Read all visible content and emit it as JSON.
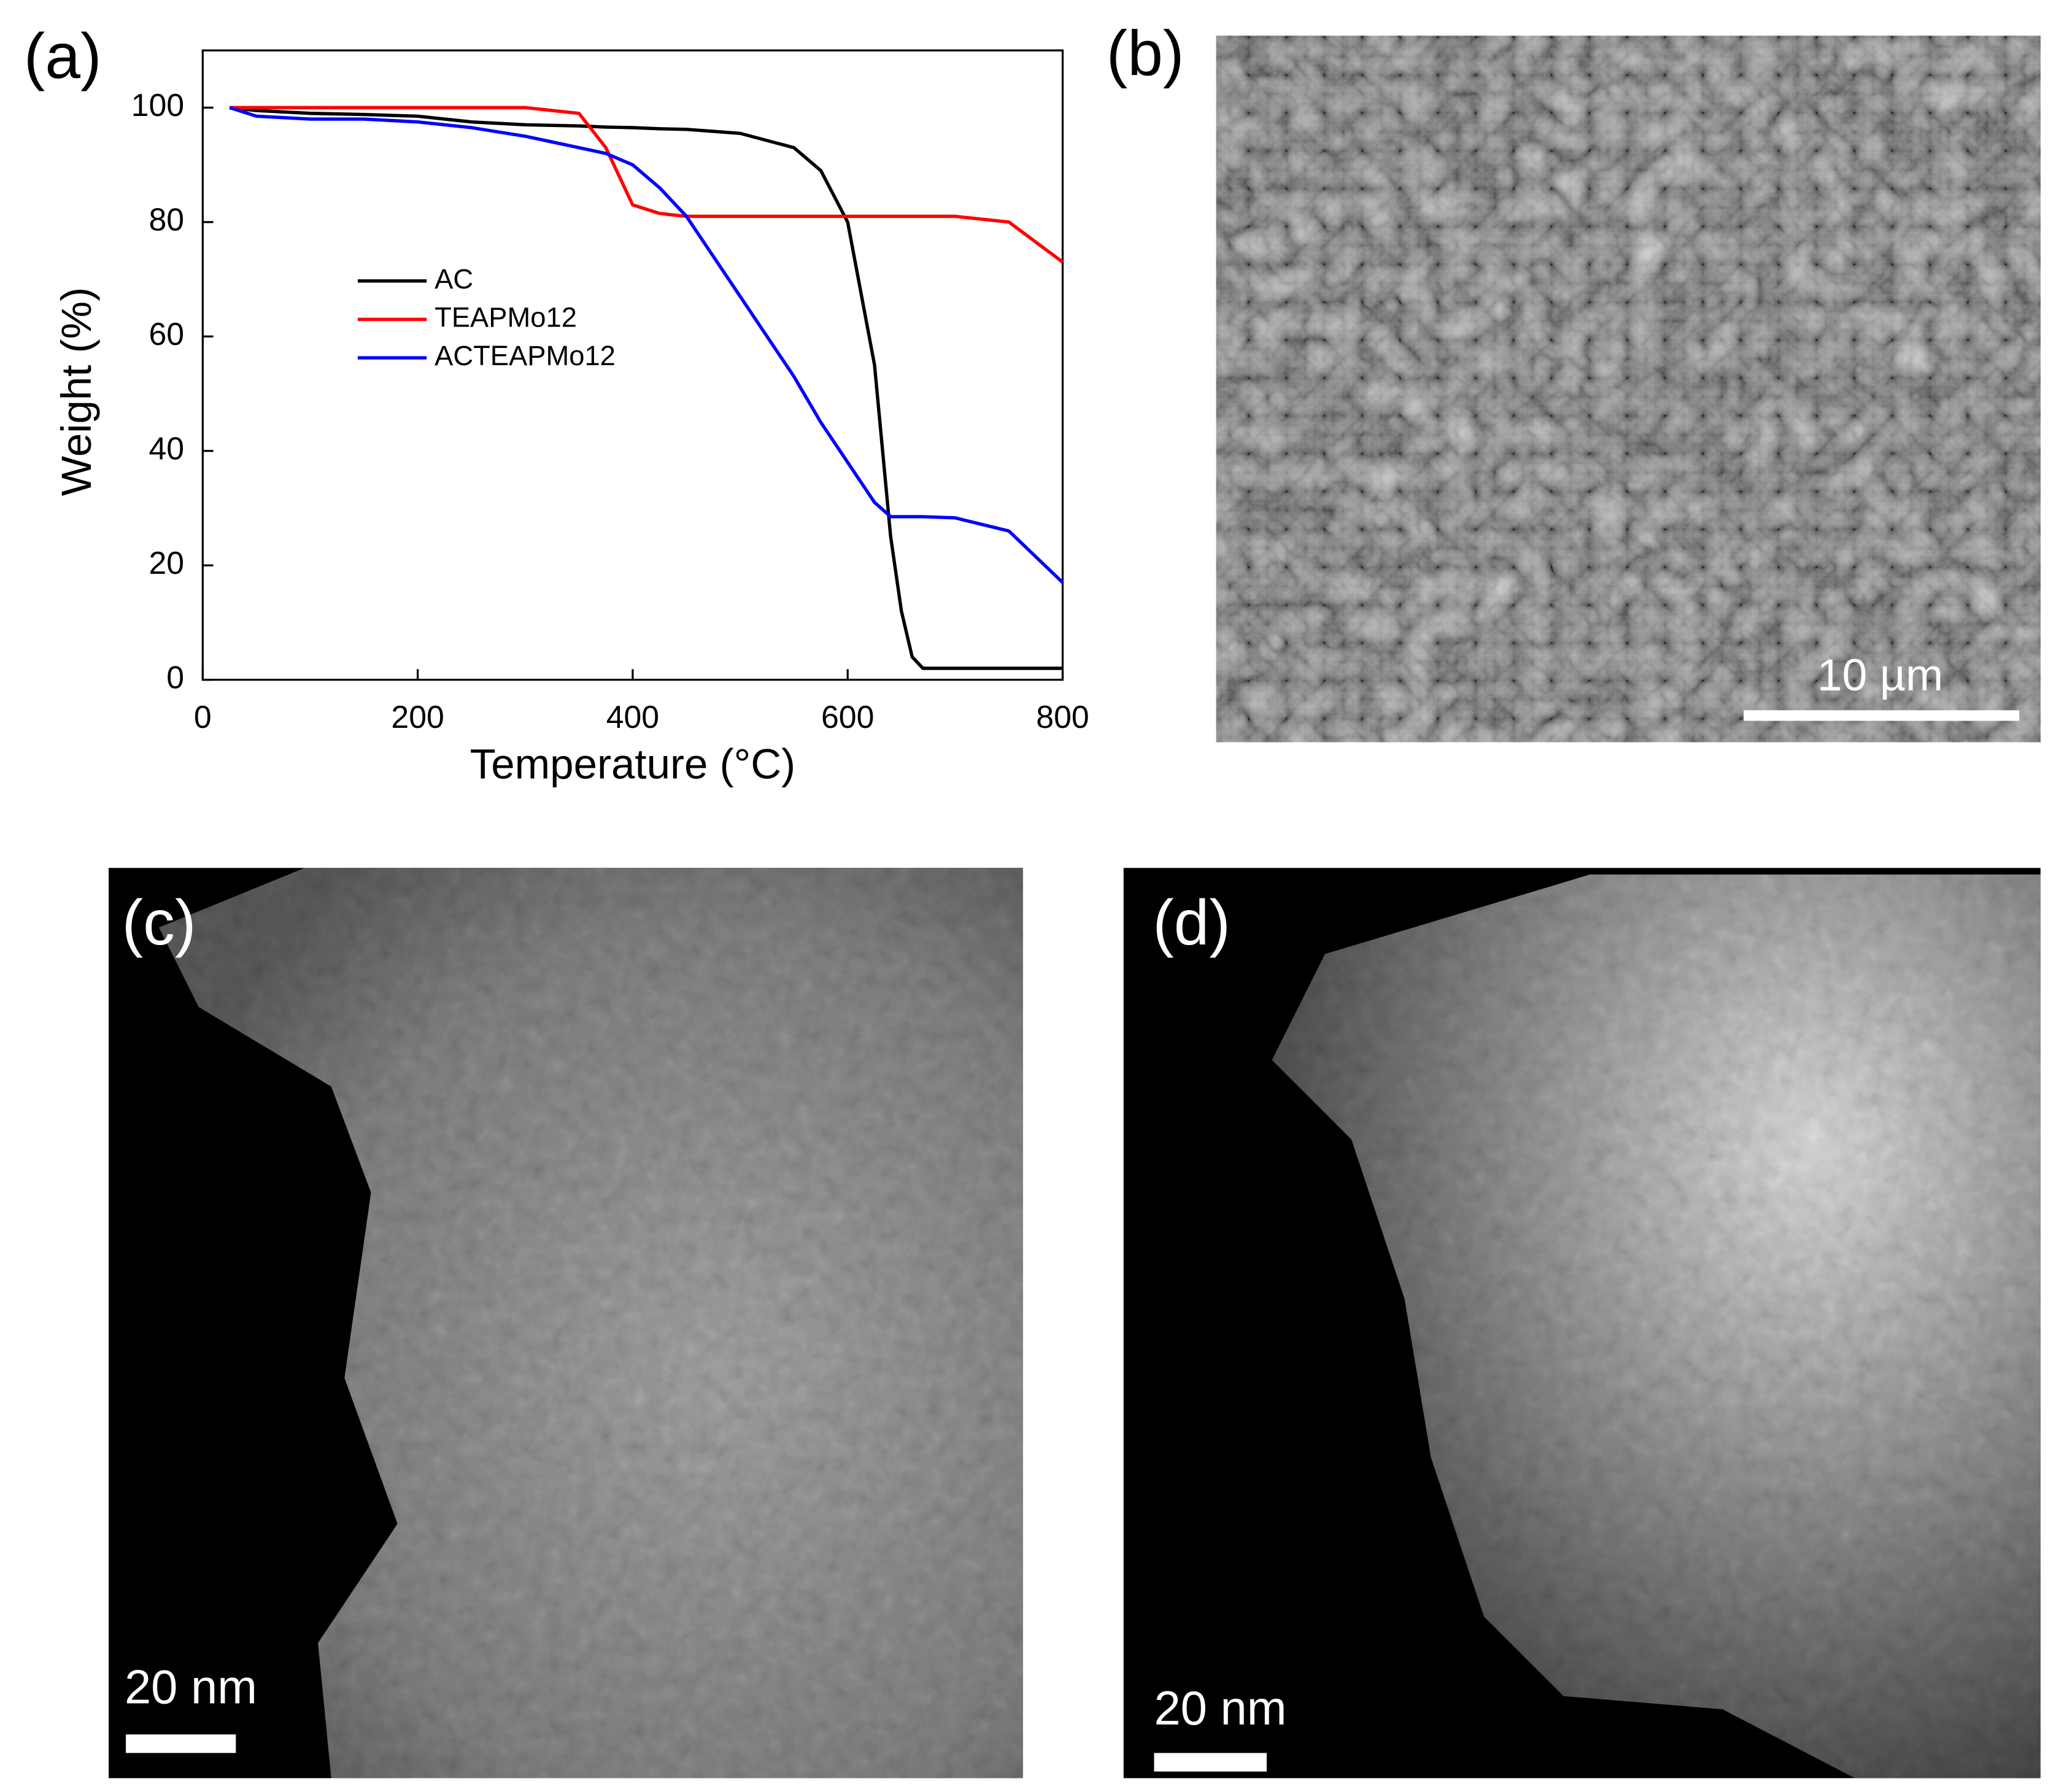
{
  "chart_data": {
    "type": "line",
    "xlabel": "Temperature (°C)",
    "ylabel": "Weight (%)",
    "x": [
      25,
      50,
      100,
      150,
      200,
      250,
      300,
      350,
      375,
      400,
      425,
      450,
      500,
      550,
      575,
      600,
      625,
      640,
      650,
      660,
      670,
      700,
      750,
      800
    ],
    "series": [
      {
        "name": "AC",
        "color": "#000000",
        "values": [
          100,
          99.5,
          99,
          98.8,
          98.5,
          97.5,
          97,
          96.8,
          96.6,
          96.5,
          96.3,
          96.2,
          95.5,
          93,
          89,
          80,
          55,
          25,
          12,
          4,
          2,
          2,
          2,
          2
        ]
      },
      {
        "name": "TEAPMo12",
        "color": "#ff0000",
        "values": [
          100,
          100,
          100,
          100,
          100,
          100,
          100,
          99,
          93,
          83,
          81.5,
          81,
          81,
          81,
          81,
          81,
          81,
          81,
          81,
          81,
          81,
          81,
          80,
          73
        ]
      },
      {
        "name": "ACTEAPMo12",
        "color": "#0000ff",
        "values": [
          100,
          98.5,
          98,
          98,
          97.5,
          96.5,
          95,
          93,
          92,
          90,
          86,
          81,
          67,
          53,
          45,
          38,
          31,
          28.5,
          28.5,
          28.5,
          28.5,
          28.3,
          26,
          17
        ]
      }
    ],
    "xlim": [
      0,
      800
    ],
    "xticks": [
      0,
      200,
      400,
      600,
      800
    ],
    "ylim": [
      0,
      110
    ],
    "yticks": [
      0,
      20,
      40,
      60,
      80,
      100
    ],
    "legend": "center-left"
  },
  "panels": {
    "labels": [
      "(a)",
      "(b)",
      "(c)",
      "(d)"
    ],
    "scale_bars": [
      "10 µm",
      "20 nm",
      "20 nm"
    ]
  }
}
